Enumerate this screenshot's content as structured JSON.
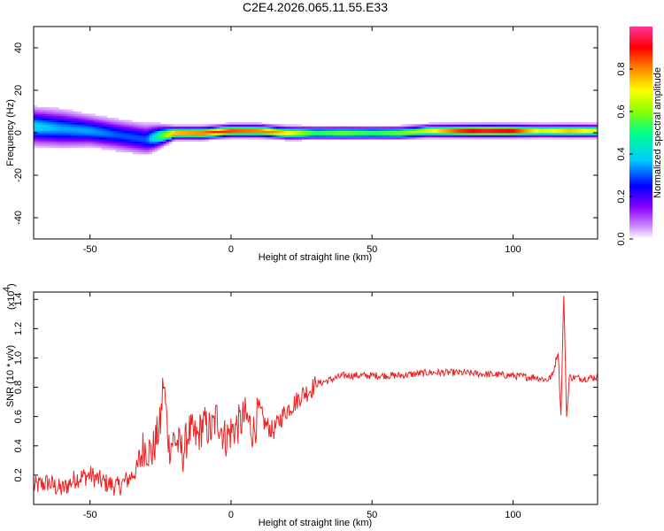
{
  "title": "C2E4.2026.065.11.55.E33",
  "chart_data": [
    {
      "type": "heatmap",
      "xlabel": "Height of straight line (km)",
      "ylabel": "Frequency (Hz)",
      "xlim": [
        -70,
        130
      ],
      "ylim": [
        -50,
        50
      ],
      "xticks": [
        -50,
        0,
        50,
        100
      ],
      "yticks": [
        -40,
        -20,
        0,
        20,
        40
      ],
      "colorbar": {
        "label": "Normalized spectral amplitude",
        "range": [
          0,
          1
        ],
        "ticks": [
          0.0,
          0.2,
          0.4,
          0.6,
          0.8
        ],
        "colormap": [
          "#ffffff",
          "#cc88ff",
          "#8800ff",
          "#0000ff",
          "#00ccff",
          "#00ff88",
          "#88ff00",
          "#ffff00",
          "#ff8800",
          "#ff0000",
          "#ff3399"
        ]
      },
      "ridge": {
        "x": [
          -70,
          -60,
          -50,
          -40,
          -30,
          -20,
          -10,
          0,
          10,
          20,
          30,
          40,
          50,
          60,
          70,
          80,
          90,
          100,
          110,
          120,
          130
        ],
        "center": [
          3,
          2,
          1,
          -1,
          -3,
          0,
          0,
          1,
          1,
          0,
          0,
          0,
          0,
          0,
          1,
          1,
          1,
          1,
          1,
          1,
          1
        ],
        "width": [
          6,
          6,
          5,
          5,
          5,
          2,
          2,
          2,
          2,
          2,
          2,
          2,
          2,
          2,
          2,
          2,
          2,
          2,
          2,
          2,
          2
        ],
        "peak": [
          0.4,
          0.35,
          0.35,
          0.3,
          0.3,
          0.8,
          0.85,
          0.9,
          0.85,
          0.75,
          0.55,
          0.6,
          0.55,
          0.6,
          0.7,
          0.9,
          1.0,
          0.95,
          0.7,
          0.8,
          0.7
        ]
      }
    },
    {
      "type": "line",
      "xlabel": "Height of straight line (km)",
      "ylabel": "SNR (10 * v/v)",
      "scale_label": "(x10",
      "scale_exponent": "4",
      "xlim": [
        -70,
        130
      ],
      "ylim": [
        0,
        1.45
      ],
      "xticks": [
        -50,
        0,
        50,
        100
      ],
      "yticks": [
        0.2,
        0.4,
        0.6,
        0.8,
        1.0,
        1.2,
        1.4
      ],
      "color": "#ee2222",
      "series": [
        {
          "x": [
            -70,
            -65,
            -60,
            -55,
            -50,
            -45,
            -40,
            -36,
            -33,
            -31,
            -28,
            -25,
            -24,
            -22,
            -20,
            -17,
            -15,
            -12,
            -10,
            -7,
            -5,
            -2,
            0,
            3,
            5,
            8,
            10,
            12,
            15,
            18,
            20,
            23,
            25,
            28,
            30,
            35,
            40,
            45,
            50,
            60,
            70,
            80,
            90,
            100,
            105,
            108,
            110,
            112,
            114,
            116,
            117,
            118,
            119,
            120,
            125,
            130
          ],
          "y": [
            0.12,
            0.15,
            0.1,
            0.18,
            0.2,
            0.15,
            0.12,
            0.18,
            0.25,
            0.4,
            0.35,
            0.55,
            0.85,
            0.4,
            0.45,
            0.35,
            0.5,
            0.45,
            0.55,
            0.5,
            0.6,
            0.45,
            0.5,
            0.55,
            0.6,
            0.5,
            0.65,
            0.55,
            0.5,
            0.6,
            0.65,
            0.7,
            0.75,
            0.78,
            0.82,
            0.85,
            0.88,
            0.88,
            0.88,
            0.88,
            0.9,
            0.9,
            0.89,
            0.88,
            0.87,
            0.87,
            0.86,
            0.85,
            0.88,
            1.05,
            0.6,
            1.44,
            0.6,
            0.87,
            0.86,
            0.87
          ]
        }
      ]
    }
  ]
}
